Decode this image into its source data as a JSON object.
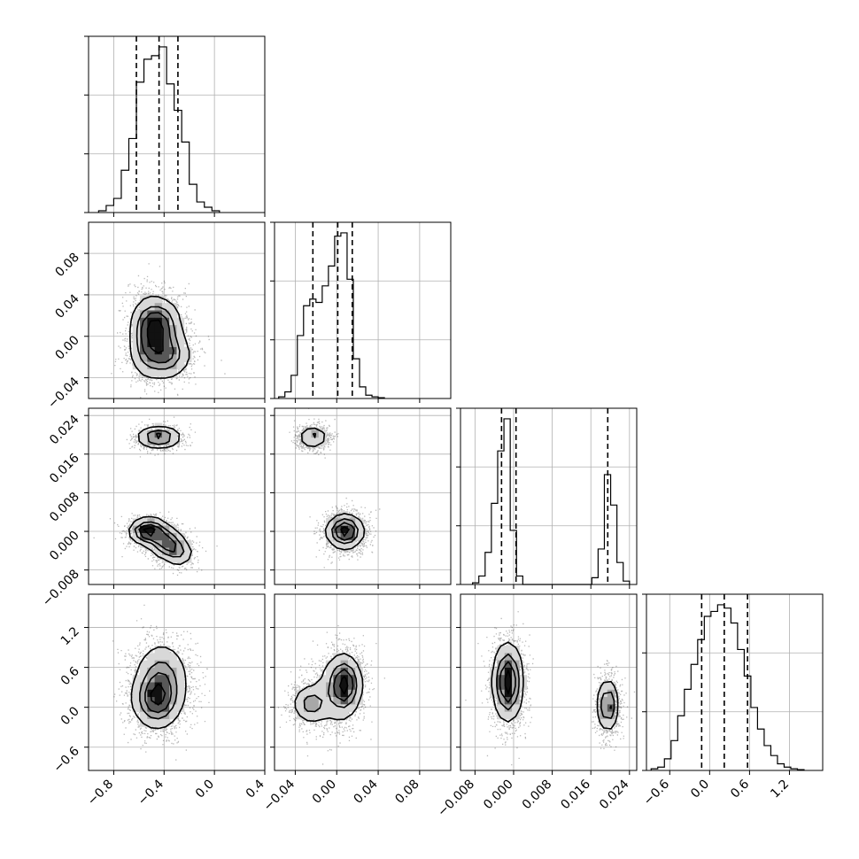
{
  "chart_data": {
    "type": "corner",
    "grid": true,
    "parameters": [
      {
        "range": [
          -1.0,
          0.4
        ],
        "ticks": [
          -0.8,
          -0.4,
          0.0,
          0.4
        ],
        "tick_labels": [
          "−0.8",
          "−0.4",
          "0.0",
          "0.4"
        ],
        "quantiles": [
          -0.62,
          -0.44,
          -0.29
        ],
        "hist_max": 1.0
      },
      {
        "range": [
          -0.06,
          0.11
        ],
        "ticks": [
          -0.04,
          0.0,
          0.04,
          0.08
        ],
        "tick_labels": [
          "−0.04",
          "0.00",
          "0.04",
          "0.08"
        ],
        "quantiles": [
          -0.023,
          0.001,
          0.015
        ],
        "hist_max": 1.0
      },
      {
        "range": [
          -0.011,
          0.0255
        ],
        "ticks": [
          -0.008,
          0.0,
          0.008,
          0.016,
          0.024
        ],
        "tick_labels": [
          "−0.008",
          "0.000",
          "0.008",
          "0.016",
          "0.024"
        ],
        "quantiles": [
          -0.0025,
          0.0005,
          0.0195
        ],
        "hist_max": 1.0
      },
      {
        "range": [
          -0.95,
          1.7
        ],
        "ticks": [
          -0.6,
          0.0,
          0.6,
          1.2
        ],
        "tick_labels": [
          "−0.6",
          "0.0",
          "0.6",
          "1.2"
        ],
        "quantiles": [
          -0.12,
          0.22,
          0.57
        ],
        "hist_max": 1.0
      }
    ],
    "histograms": [
      {
        "param": 0,
        "bin_edges": [
          -0.92,
          -0.86,
          -0.8,
          -0.74,
          -0.68,
          -0.62,
          -0.56,
          -0.5,
          -0.44,
          -0.38,
          -0.32,
          -0.26,
          -0.2,
          -0.14,
          -0.08,
          -0.02,
          0.04
        ],
        "counts": [
          0.01,
          0.04,
          0.08,
          0.24,
          0.42,
          0.74,
          0.87,
          0.89,
          0.94,
          0.73,
          0.58,
          0.4,
          0.16,
          0.06,
          0.03,
          0.01
        ]
      },
      {
        "param": 1,
        "bin_edges": [
          -0.056,
          -0.05,
          -0.044,
          -0.038,
          -0.032,
          -0.026,
          -0.02,
          -0.014,
          -0.008,
          -0.002,
          0.004,
          0.01,
          0.016,
          0.022,
          0.028,
          0.034,
          0.04,
          0.046
        ],
        "counts": [
          0.01,
          0.04,
          0.14,
          0.38,
          0.56,
          0.6,
          0.58,
          0.68,
          0.8,
          0.98,
          1.0,
          0.72,
          0.24,
          0.07,
          0.02,
          0.01,
          0.005
        ]
      },
      {
        "param": 2,
        "bin_edges": [
          -0.0085,
          -0.0072,
          -0.0059,
          -0.0046,
          -0.0033,
          -0.002,
          -0.0007,
          0.0006,
          0.0019,
          0.0032,
          0.0045,
          0.0058,
          0.0071,
          0.0084,
          0.0097,
          0.011,
          0.0123,
          0.0136,
          0.0149,
          0.0162,
          0.0175,
          0.0188,
          0.0201,
          0.0214,
          0.0227,
          0.024
        ],
        "counts": [
          0.01,
          0.05,
          0.19,
          0.48,
          0.79,
          0.98,
          0.32,
          0.05,
          0.0,
          0.0,
          0.0,
          0.0,
          0.0,
          0.0,
          0.0,
          0.0,
          0.0,
          0.0,
          0.0,
          0.04,
          0.21,
          0.65,
          0.47,
          0.13,
          0.02
        ]
      },
      {
        "param": 3,
        "bin_edges": [
          -0.88,
          -0.78,
          -0.68,
          -0.58,
          -0.48,
          -0.38,
          -0.28,
          -0.18,
          -0.08,
          0.02,
          0.12,
          0.22,
          0.32,
          0.42,
          0.52,
          0.62,
          0.72,
          0.82,
          0.92,
          1.02,
          1.12,
          1.22,
          1.32,
          1.42
        ],
        "counts": [
          0.01,
          0.02,
          0.07,
          0.18,
          0.33,
          0.49,
          0.64,
          0.79,
          0.93,
          0.96,
          1.0,
          0.98,
          0.89,
          0.73,
          0.57,
          0.38,
          0.25,
          0.15,
          0.09,
          0.04,
          0.02,
          0.01,
          0.005
        ]
      }
    ],
    "pairs": [
      {
        "x": 0,
        "y": 1,
        "blobs": [
          {
            "cx": -0.44,
            "cy": 0.01,
            "sx": 0.09,
            "sy": 0.014,
            "w": 1.0
          },
          {
            "cx": -0.4,
            "cy": -0.018,
            "sx": 0.11,
            "sy": 0.012,
            "w": 0.85
          },
          {
            "cx": -0.55,
            "cy": 0.0,
            "sx": 0.07,
            "sy": 0.02,
            "w": 0.5
          }
        ]
      },
      {
        "x": 0,
        "y": 2,
        "blobs": [
          {
            "cx": -0.44,
            "cy": 0.0195,
            "sx": 0.09,
            "sy": 0.0012,
            "w": 0.55
          },
          {
            "cx": -0.52,
            "cy": 0.0,
            "sx": 0.08,
            "sy": 0.0014,
            "w": 0.75
          },
          {
            "cx": -0.38,
            "cy": -0.0025,
            "sx": 0.07,
            "sy": 0.0016,
            "w": 0.55
          },
          {
            "cx": -0.28,
            "cy": -0.0045,
            "sx": 0.06,
            "sy": 0.0015,
            "w": 0.3
          }
        ]
      },
      {
        "x": 1,
        "y": 2,
        "blobs": [
          {
            "cx": -0.023,
            "cy": 0.0195,
            "sx": 0.007,
            "sy": 0.0011,
            "w": 0.5
          },
          {
            "cx": 0.008,
            "cy": 0.0,
            "sx": 0.009,
            "sy": 0.0018,
            "w": 1.0
          }
        ]
      },
      {
        "x": 0,
        "y": 3,
        "blobs": [
          {
            "cx": -0.46,
            "cy": 0.1,
            "sx": 0.1,
            "sy": 0.22,
            "w": 1.0
          },
          {
            "cx": -0.42,
            "cy": 0.45,
            "sx": 0.11,
            "sy": 0.28,
            "w": 0.7
          }
        ]
      },
      {
        "x": 1,
        "y": 3,
        "blobs": [
          {
            "cx": 0.008,
            "cy": 0.35,
            "sx": 0.008,
            "sy": 0.22,
            "w": 1.0
          },
          {
            "cx": -0.025,
            "cy": 0.05,
            "sx": 0.009,
            "sy": 0.15,
            "w": 0.7
          },
          {
            "cx": 0.0,
            "cy": 0.25,
            "sx": 0.012,
            "sy": 0.3,
            "w": 0.4
          }
        ]
      },
      {
        "x": 2,
        "y": 3,
        "blobs": [
          {
            "cx": -0.0012,
            "cy": 0.38,
            "sx": 0.0016,
            "sy": 0.3,
            "w": 1.0
          },
          {
            "cx": 0.0195,
            "cy": 0.03,
            "sx": 0.0011,
            "sy": 0.2,
            "w": 0.75
          }
        ]
      }
    ]
  }
}
